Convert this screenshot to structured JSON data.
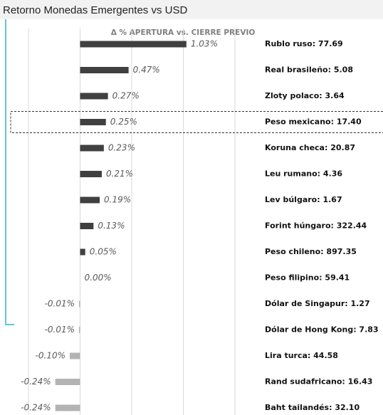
{
  "chart_data": {
    "type": "bar",
    "orientation": "horizontal",
    "title": "Retorno Monedas Emergentes vs USD",
    "subtitle": "Δ % APERTURA vs. CIERRE PREVIO",
    "categories": [
      "Rublo ruso: 77.69",
      "Real brasileño: 5.08",
      "Zloty polaco: 3.64",
      "Peso mexicano: 17.40",
      "Koruna checa: 20.87",
      "Leu rumano: 4.36",
      "Lev búlgaro: 1.67",
      "Forint húngaro: 322.44",
      "Peso chileno: 897.35",
      "Peso filipino: 59.41",
      "Dólar de Singapur: 1.27",
      "Dólar de Hong Kong: 7.83",
      "Lira turca: 44.58",
      "Rand sudafricano: 16.43",
      "Baht tailandés: 32.10"
    ],
    "values": [
      1.03,
      0.47,
      0.27,
      0.25,
      0.23,
      0.21,
      0.19,
      0.13,
      0.05,
      0.0,
      -0.01,
      -0.01,
      -0.1,
      -0.24,
      -0.24
    ],
    "value_labels": [
      "1.03%",
      "0.47%",
      "0.27%",
      "0.25%",
      "0.23%",
      "0.21%",
      "0.19%",
      "0.13%",
      "0.05%",
      "0.00%",
      "-0.01%",
      "-0.01%",
      "-0.10%",
      "-0.24%",
      "-0.24%"
    ],
    "color": "#404040",
    "negative_color": "#b3b3b3",
    "xlim": [
      -0.5,
      1.5
    ],
    "xticks": [
      -0.5,
      0,
      0.5,
      1,
      1.5
    ],
    "grid": true,
    "highlight": 3
  }
}
